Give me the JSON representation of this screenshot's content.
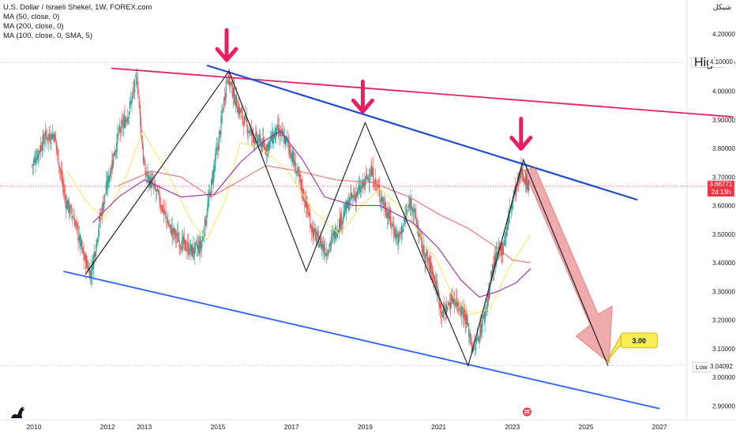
{
  "legend": {
    "title": "U.S. Dollar / Israeli Shekel, 1W, FOREX.com",
    "ma1": "MA (50, close, 0)",
    "ma2": "MA (200, close, 0)",
    "ma3": "MA (100, close, 0, SMA, 5)"
  },
  "currency_label": "شيكل",
  "colors": {
    "up": "#26a69a",
    "down": "#ef5350",
    "ma50": "#f5e663",
    "ma200": "#ef6c6c",
    "ma100": "#9c27b0",
    "resistance": "#e91e63",
    "upper_channel": "#1e4bd2",
    "lower_channel": "#2962ff",
    "arrow": "#e91e63",
    "projection": "#e57373"
  },
  "price_tags": {
    "high_label": "High",
    "high_value": "4.10000",
    "low_label": "Low",
    "low_value": "3.04092",
    "last_value": "3.66771",
    "last_countdown": "2d 13h"
  },
  "target_callout": "3.00",
  "chart_data": {
    "type": "candlestick",
    "x_axis": {
      "ticks": [
        "2010",
        "2012",
        "2013",
        "2015",
        "2017",
        "2019",
        "2021",
        "2023",
        "2025",
        "2027"
      ]
    },
    "y_axis": {
      "ticks": [
        "4.20000",
        "4.10000",
        "4.00000",
        "3.90000",
        "3.80000",
        "3.70000",
        "3.60000",
        "3.50000",
        "3.40000",
        "3.30000",
        "3.20000",
        "3.10000",
        "3.00000",
        "2.90000"
      ],
      "range": [
        2.87,
        4.27
      ]
    },
    "price_path": [
      [
        2009.95,
        3.74
      ],
      [
        2010.3,
        3.84
      ],
      [
        2010.55,
        3.85
      ],
      [
        2010.85,
        3.62
      ],
      [
        2011.1,
        3.55
      ],
      [
        2011.35,
        3.42
      ],
      [
        2011.55,
        3.36
      ],
      [
        2011.8,
        3.56
      ],
      [
        2012.1,
        3.74
      ],
      [
        2012.3,
        3.85
      ],
      [
        2012.55,
        3.92
      ],
      [
        2012.8,
        4.05
      ],
      [
        2013.0,
        3.72
      ],
      [
        2013.35,
        3.64
      ],
      [
        2013.7,
        3.52
      ],
      [
        2014.0,
        3.47
      ],
      [
        2014.3,
        3.44
      ],
      [
        2014.55,
        3.46
      ],
      [
        2014.75,
        3.62
      ],
      [
        2015.05,
        3.85
      ],
      [
        2015.25,
        4.06
      ],
      [
        2015.55,
        3.94
      ],
      [
        2015.9,
        3.85
      ],
      [
        2016.3,
        3.8
      ],
      [
        2016.6,
        3.86
      ],
      [
        2016.9,
        3.82
      ],
      [
        2017.3,
        3.65
      ],
      [
        2017.6,
        3.5
      ],
      [
        2017.95,
        3.44
      ],
      [
        2018.3,
        3.54
      ],
      [
        2018.6,
        3.62
      ],
      [
        2018.9,
        3.66
      ],
      [
        2019.15,
        3.72
      ],
      [
        2019.4,
        3.64
      ],
      [
        2019.65,
        3.56
      ],
      [
        2019.9,
        3.48
      ],
      [
        2020.25,
        3.62
      ],
      [
        2020.55,
        3.45
      ],
      [
        2020.85,
        3.36
      ],
      [
        2021.1,
        3.22
      ],
      [
        2021.4,
        3.28
      ],
      [
        2021.7,
        3.22
      ],
      [
        2021.95,
        3.09
      ],
      [
        2022.25,
        3.22
      ],
      [
        2022.5,
        3.4
      ],
      [
        2022.75,
        3.46
      ],
      [
        2023.0,
        3.62
      ],
      [
        2023.25,
        3.72
      ],
      [
        2023.45,
        3.66771
      ]
    ],
    "series": [
      {
        "name": "MA (50, close, 0)",
        "values": [
          [
            2010.9,
            3.72
          ],
          [
            2011.4,
            3.62
          ],
          [
            2011.9,
            3.55
          ],
          [
            2012.5,
            3.7
          ],
          [
            2012.95,
            3.86
          ],
          [
            2013.6,
            3.72
          ],
          [
            2014.3,
            3.54
          ],
          [
            2014.7,
            3.48
          ],
          [
            2015.2,
            3.62
          ],
          [
            2015.6,
            3.82
          ],
          [
            2016.2,
            3.8
          ],
          [
            2016.9,
            3.72
          ],
          [
            2017.6,
            3.58
          ],
          [
            2018.3,
            3.5
          ],
          [
            2018.9,
            3.6
          ],
          [
            2019.4,
            3.66
          ],
          [
            2019.9,
            3.6
          ],
          [
            2020.4,
            3.52
          ],
          [
            2020.9,
            3.42
          ],
          [
            2021.4,
            3.28
          ],
          [
            2021.9,
            3.22
          ],
          [
            2022.4,
            3.24
          ],
          [
            2022.9,
            3.38
          ],
          [
            2023.5,
            3.5
          ]
        ]
      },
      {
        "name": "MA (200, close, 0)",
        "values": [
          [
            2012.3,
            3.67
          ],
          [
            2013.2,
            3.72
          ],
          [
            2014.0,
            3.7
          ],
          [
            2014.8,
            3.63
          ],
          [
            2015.5,
            3.68
          ],
          [
            2016.3,
            3.74
          ],
          [
            2017.2,
            3.72
          ],
          [
            2018.2,
            3.69
          ],
          [
            2019.2,
            3.68
          ],
          [
            2020.2,
            3.63
          ],
          [
            2021.0,
            3.57
          ],
          [
            2021.8,
            3.52
          ],
          [
            2022.5,
            3.46
          ],
          [
            2023.0,
            3.41
          ],
          [
            2023.5,
            3.4
          ]
        ]
      },
      {
        "name": "MA (100, close, 0, SMA, 5)",
        "values": [
          [
            2011.6,
            3.54
          ],
          [
            2012.3,
            3.63
          ],
          [
            2013.0,
            3.69
          ],
          [
            2014.0,
            3.63
          ],
          [
            2014.9,
            3.64
          ],
          [
            2015.6,
            3.75
          ],
          [
            2016.3,
            3.83
          ],
          [
            2016.7,
            3.86
          ],
          [
            2017.3,
            3.76
          ],
          [
            2017.9,
            3.63
          ],
          [
            2018.7,
            3.6
          ],
          [
            2019.4,
            3.6
          ],
          [
            2020.3,
            3.54
          ],
          [
            2021.0,
            3.45
          ],
          [
            2021.6,
            3.34
          ],
          [
            2022.1,
            3.28
          ],
          [
            2022.6,
            3.3
          ],
          [
            2023.1,
            3.33
          ],
          [
            2023.5,
            3.38
          ]
        ]
      }
    ],
    "resistance_line": [
      [
        2012.1,
        4.08
      ],
      [
        2029.0,
        3.91
      ]
    ],
    "upper_channel": [
      [
        2014.7,
        4.09
      ],
      [
        2026.4,
        3.62
      ]
    ],
    "lower_channel": [
      [
        2010.8,
        3.37
      ],
      [
        2027.0,
        2.89
      ]
    ],
    "zigzag": [
      [
        2011.4,
        3.36
      ],
      [
        2015.3,
        4.07
      ],
      [
        2017.4,
        3.37
      ],
      [
        2019.0,
        3.89
      ],
      [
        2021.8,
        3.04
      ],
      [
        2023.3,
        3.76
      ],
      [
        2025.6,
        3.04
      ]
    ],
    "projection_target": 3.0
  }
}
